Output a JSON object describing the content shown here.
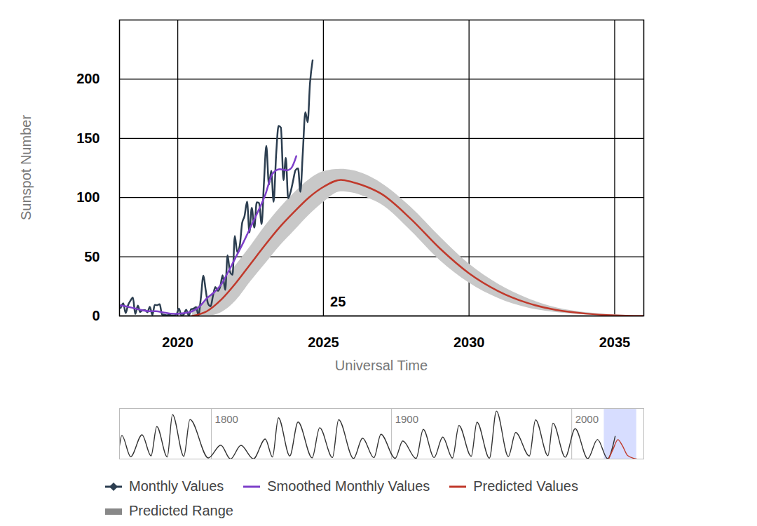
{
  "chart_data": [
    {
      "type": "line",
      "x_label": "Universal Time",
      "y_label": "Sunspot Number",
      "xlim": [
        2018,
        2036
      ],
      "xticks": [
        2020,
        2025,
        2030,
        2035
      ],
      "ylim": [
        0,
        250
      ],
      "yticks": [
        0,
        50,
        100,
        150,
        200
      ],
      "grid": true,
      "legend": "bottom",
      "annotations": [
        {
          "text": "25",
          "x": 2025.5,
          "y": 12
        }
      ],
      "series": [
        {
          "name": "Monthly Values",
          "type": "line",
          "color": "#2c3e50",
          "marker": "diamond",
          "x": [
            2018.04,
            2018.13,
            2018.21,
            2018.29,
            2018.38,
            2018.46,
            2018.54,
            2018.63,
            2018.71,
            2018.79,
            2018.88,
            2018.96,
            2019.04,
            2019.13,
            2019.21,
            2019.29,
            2019.38,
            2019.46,
            2019.54,
            2019.63,
            2019.71,
            2019.79,
            2019.88,
            2019.96,
            2020.04,
            2020.13,
            2020.21,
            2020.29,
            2020.38,
            2020.46,
            2020.54,
            2020.63,
            2020.71,
            2020.79,
            2020.88,
            2020.96,
            2021.04,
            2021.13,
            2021.21,
            2021.29,
            2021.38,
            2021.46,
            2021.54,
            2021.63,
            2021.71,
            2021.79,
            2021.88,
            2021.96,
            2022.04,
            2022.13,
            2022.21,
            2022.29,
            2022.38,
            2022.46,
            2022.54,
            2022.63,
            2022.71,
            2022.79,
            2022.88,
            2022.96,
            2023.04,
            2023.13,
            2023.21,
            2023.29,
            2023.38,
            2023.46,
            2023.54,
            2023.63,
            2023.71,
            2023.79,
            2023.88,
            2023.96,
            2024.04,
            2024.13,
            2024.21,
            2024.29,
            2024.38,
            2024.46,
            2024.54,
            2024.63
          ],
          "values": [
            6.8,
            10.7,
            2.5,
            8.9,
            13.1,
            15.6,
            1.6,
            8.7,
            3.3,
            4.9,
            4.9,
            3.1,
            7.7,
            0.8,
            9.4,
            9.1,
            9.9,
            1.2,
            0.9,
            0.5,
            1.1,
            0.4,
            0.5,
            1.5,
            6.2,
            0.2,
            1.5,
            5.2,
            0.2,
            5.8,
            6.1,
            7.5,
            0.6,
            14.4,
            34.0,
            21.8,
            10.4,
            8.2,
            17.2,
            24.5,
            21.2,
            25.0,
            34.4,
            22.0,
            51.3,
            37.4,
            34.8,
            67.5,
            54.0,
            59.7,
            78.5,
            84.1,
            96.5,
            70.5,
            91.4,
            74.6,
            96.0,
            95.5,
            77.6,
            113.1,
            143.6,
            110.9,
            122.6,
            96.4,
            137.4,
            160.5,
            159.1,
            114.8,
            133.6,
            99.4,
            105.4,
            114.2,
            123.0,
            124.7,
            104.9,
            136.5,
            172.1,
            163.7,
            196.6,
            216.0
          ]
        },
        {
          "name": "Smoothed Monthly Values",
          "type": "line",
          "color": "#7d3fc9",
          "x": [
            2018.0,
            2018.25,
            2018.5,
            2018.75,
            2019.0,
            2019.25,
            2019.5,
            2019.75,
            2020.0,
            2020.25,
            2020.5,
            2020.75,
            2021.0,
            2021.25,
            2021.5,
            2021.75,
            2022.0,
            2022.25,
            2022.5,
            2022.75,
            2023.0,
            2023.25,
            2023.5,
            2023.75,
            2023.9,
            2024.07
          ],
          "values": [
            9,
            8,
            6.5,
            5,
            4,
            4,
            3,
            2,
            1.8,
            2.5,
            4,
            8,
            15,
            20,
            27,
            38,
            50,
            62,
            75,
            88,
            102,
            120,
            124,
            123,
            125,
            135
          ]
        },
        {
          "name": "Predicted Values",
          "type": "line",
          "color": "#c0392b",
          "x": [
            2020.5,
            2021,
            2021.5,
            2022,
            2022.5,
            2023,
            2023.5,
            2024,
            2024.5,
            2025,
            2025.6,
            2026,
            2026.5,
            2027,
            2028,
            2029,
            2030,
            2031,
            2032,
            2033,
            2034,
            2035,
            2036
          ],
          "values": [
            0,
            4,
            14,
            28,
            44,
            60,
            75,
            88,
            100,
            109,
            115,
            113,
            109,
            103,
            82,
            57,
            36,
            21,
            11,
            5,
            2,
            0.5,
            0
          ]
        },
        {
          "name": "Predicted Range",
          "type": "band",
          "color": "#c8c8c8",
          "x": [
            2020.5,
            2021,
            2021.5,
            2022,
            2022.5,
            2023,
            2023.5,
            2024,
            2024.5,
            2025,
            2025.6,
            2026,
            2026.5,
            2027,
            2028,
            2029,
            2030,
            2031,
            2032,
            2033,
            2034,
            2035,
            2036
          ],
          "low": [
            0,
            0,
            3,
            13,
            29,
            44,
            59,
            72,
            85,
            96,
            105,
            104,
            100,
            94,
            72,
            47,
            28,
            15,
            7,
            3,
            1,
            0,
            0
          ],
          "high": [
            5,
            14,
            27,
            43,
            59,
            76,
            91,
            104,
            115,
            122,
            124,
            123,
            119,
            112,
            92,
            67,
            44,
            27,
            15,
            7,
            3,
            1,
            0
          ]
        }
      ]
    },
    {
      "type": "line",
      "xlim": [
        1749,
        2040
      ],
      "xticks": [
        1800,
        1900,
        2000
      ],
      "ylim": [
        0,
        300
      ],
      "grid": true,
      "tick_labels": "x",
      "series": [
        {
          "type": "line",
          "color": "#333333",
          "x": [
            1749,
            1750.3,
            1755.2,
            1761.5,
            1766.5,
            1769.7,
            1775.5,
            1778.4,
            1784.7,
            1788.1,
            1798.3,
            1805.2,
            1810.6,
            1816.4,
            1823.3,
            1829.9,
            1833.9,
            1837.2,
            1843.5,
            1848.1,
            1855.9,
            1860.1,
            1867.2,
            1870.6,
            1878.9,
            1883.9,
            1890.2,
            1894.1,
            1902.0,
            1906.2,
            1913.6,
            1917.6,
            1923.6,
            1928.4,
            1933.8,
            1937.4,
            1944.2,
            1947.4,
            1954.3,
            1958.2,
            1964.8,
            1968.9,
            1976.5,
            1979.9,
            1986.8,
            1989.6,
            1996.4,
            2001.9,
            2008.9,
            2014.3,
            2019.9,
            2024.1
          ],
          "values": [
            80,
            140,
            14,
            144,
            19,
            193,
            12,
            264,
            16,
            235,
            6,
            82,
            0,
            81,
            1,
            119,
            12,
            245,
            18,
            220,
            7,
            186,
            9,
            234,
            3,
            124,
            8,
            147,
            4,
            107,
            3,
            176,
            9,
            130,
            6,
            199,
            16,
            219,
            5,
            285,
            15,
            157,
            18,
            233,
            20,
            213,
            11,
            180,
            2,
            116,
            2,
            135
          ]
        },
        {
          "type": "line",
          "color": "#c0392b",
          "x": [
            2020.5,
            2023,
            2025.6,
            2028,
            2031,
            2036
          ],
          "values": [
            0,
            60,
            115,
            82,
            21,
            0
          ]
        }
      ]
    }
  ]
}
